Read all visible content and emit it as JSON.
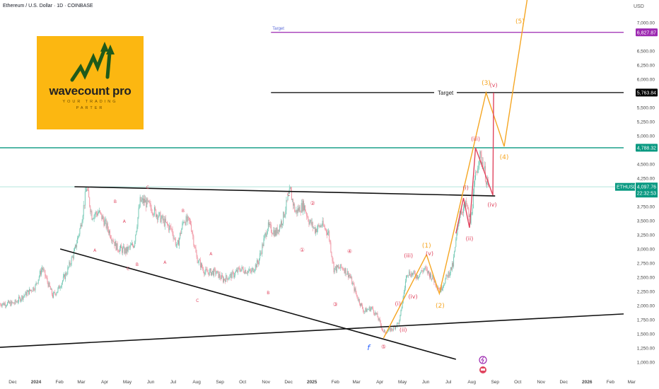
{
  "header": {
    "title": "Ethereum / U.S. Dollar · 1D · COINBASE",
    "currency": "USD"
  },
  "logo": {
    "brand": "wavecount pro",
    "tagline_1": "YOUR TRADING",
    "tagline_2": "PARTER"
  },
  "colors": {
    "up": "#6cc5b0",
    "down": "#ef8d9c",
    "teal": "#089981",
    "purple": "#9c27b0",
    "orange": "#f5a623",
    "wave_red": "#e0455f",
    "blue": "#2962ff"
  },
  "chart_data": {
    "type": "candlestick",
    "title": "Ethereum / U.S. Dollar · 1D · COINBASE",
    "scale": "linear",
    "ylim": [
      1000,
      7000
    ],
    "y_ticks": [
      1000,
      1250,
      1500,
      1750,
      2000,
      2250,
      2500,
      2750,
      3000,
      3250,
      3500,
      3750,
      4250,
      4500,
      5000,
      5250,
      5500,
      6000,
      6250,
      6500,
      7000
    ],
    "y_tick_labels": [
      "1,000.00",
      "1,250.00",
      "1,500.00",
      "1,750.00",
      "2,000.00",
      "2,250.00",
      "2,500.00",
      "2,750.00",
      "3,000.00",
      "3,250.00",
      "3,500.00",
      "3,750.00",
      "4,250.00",
      "4,500.00",
      "5,000.00",
      "5,250.00",
      "5,500.00",
      "6,000.00",
      "6,250.00",
      "6,500.00",
      "7,000.00"
    ],
    "x_unit": "days since 2023-12-01",
    "x_ticks": [
      {
        "day": 0,
        "label": "Dec"
      },
      {
        "day": 31,
        "label": "2024"
      },
      {
        "day": 62,
        "label": "Feb"
      },
      {
        "day": 91,
        "label": "Mar"
      },
      {
        "day": 122,
        "label": "Apr"
      },
      {
        "day": 152,
        "label": "May"
      },
      {
        "day": 183,
        "label": "Jun"
      },
      {
        "day": 213,
        "label": "Jul"
      },
      {
        "day": 244,
        "label": "Aug"
      },
      {
        "day": 275,
        "label": "Sep"
      },
      {
        "day": 305,
        "label": "Oct"
      },
      {
        "day": 336,
        "label": "Nov"
      },
      {
        "day": 366,
        "label": "Dec"
      },
      {
        "day": 397,
        "label": "2025"
      },
      {
        "day": 428,
        "label": "Feb"
      },
      {
        "day": 456,
        "label": "Mar"
      },
      {
        "day": 487,
        "label": "Apr"
      },
      {
        "day": 517,
        "label": "May"
      },
      {
        "day": 548,
        "label": "Jun"
      },
      {
        "day": 578,
        "label": "Jul"
      },
      {
        "day": 609,
        "label": "Aug"
      },
      {
        "day": 640,
        "label": "Sep"
      },
      {
        "day": 670,
        "label": "Oct"
      },
      {
        "day": 701,
        "label": "Nov"
      },
      {
        "day": 731,
        "label": "Dec"
      },
      {
        "day": 762,
        "label": "2026"
      },
      {
        "day": 793,
        "label": "Feb"
      },
      {
        "day": 821,
        "label": "Mar"
      }
    ],
    "price_path": [
      [
        -17,
        2030
      ],
      [
        2,
        2040
      ],
      [
        30,
        2340
      ],
      [
        39,
        2670
      ],
      [
        53,
        2170
      ],
      [
        60,
        2280
      ],
      [
        72,
        2600
      ],
      [
        82,
        2960
      ],
      [
        90,
        3400
      ],
      [
        98,
        4090
      ],
      [
        105,
        3590
      ],
      [
        114,
        3650
      ],
      [
        120,
        3520
      ],
      [
        129,
        3280
      ],
      [
        138,
        3025
      ],
      [
        150,
        2960
      ],
      [
        161,
        3090
      ],
      [
        169,
        3840
      ],
      [
        175,
        3840
      ],
      [
        189,
        3650
      ],
      [
        204,
        3430
      ],
      [
        211,
        3340
      ],
      [
        218,
        3025
      ],
      [
        227,
        3520
      ],
      [
        236,
        3460
      ],
      [
        244,
        2840
      ],
      [
        255,
        2590
      ],
      [
        269,
        2590
      ],
      [
        279,
        2460
      ],
      [
        293,
        2550
      ],
      [
        302,
        2650
      ],
      [
        316,
        2590
      ],
      [
        326,
        2780
      ],
      [
        338,
        3400
      ],
      [
        349,
        3280
      ],
      [
        358,
        3520
      ],
      [
        368,
        4025
      ],
      [
        375,
        3650
      ],
      [
        386,
        3780
      ],
      [
        393,
        3500
      ],
      [
        401,
        3340
      ],
      [
        410,
        3430
      ],
      [
        419,
        3280
      ],
      [
        426,
        2650
      ],
      [
        438,
        2670
      ],
      [
        447,
        2525
      ],
      [
        457,
        2150
      ],
      [
        466,
        1900
      ],
      [
        476,
        1960
      ],
      [
        484,
        1800
      ],
      [
        492,
        1525
      ],
      [
        504,
        1590
      ],
      [
        513,
        1710
      ],
      [
        523,
        2590
      ],
      [
        537,
        2525
      ],
      [
        546,
        2650
      ],
      [
        555,
        2525
      ],
      [
        567,
        2275
      ],
      [
        574,
        2460
      ],
      [
        584,
        2710
      ],
      [
        593,
        3650
      ],
      [
        602,
        3780
      ],
      [
        607,
        3460
      ],
      [
        614,
        4275
      ],
      [
        619,
        4650
      ],
      [
        624,
        4525
      ],
      [
        629,
        4150
      ],
      [
        632,
        4097.76
      ]
    ],
    "horizontal_levels": [
      {
        "name": "target-upper",
        "price": 6827.87,
        "label": "6,827.87",
        "text": "Target",
        "color": "#9c27b0",
        "from_day": 322
      },
      {
        "name": "target-mid",
        "price": 5763.84,
        "label": "5,763.84",
        "text": "Target",
        "color": "#000000",
        "from_day": 322
      },
      {
        "name": "resistance",
        "price": 4788.32,
        "label": "4,788.32",
        "color": "#089981",
        "from_day": -17
      }
    ],
    "last_price": {
      "symbol": "ETHUSD",
      "price": 4097.76,
      "label": "4,097.76",
      "countdown": "22:32:53"
    },
    "trendlines": [
      {
        "name": "upper-trendline",
        "points": [
          [
            82,
            4100
          ],
          [
            640,
            3937
          ]
        ]
      },
      {
        "name": "descending-trendline",
        "points": [
          [
            63,
            3000
          ],
          [
            588,
            1050
          ]
        ]
      },
      {
        "name": "ascending-trendline",
        "points": [
          [
            -17,
            1262
          ],
          [
            825,
            1862
          ]
        ]
      }
    ],
    "projection_orange": [
      [
        492,
        1425
      ],
      [
        549,
        2900
      ],
      [
        566,
        2212
      ],
      [
        628,
        5763
      ],
      [
        652,
        4812
      ],
      [
        683,
        7450
      ]
    ],
    "projection_red": [
      [
        588,
        3275
      ],
      [
        598,
        3900
      ],
      [
        606,
        3375
      ],
      [
        614,
        4788
      ],
      [
        637,
        3950
      ],
      [
        638,
        5763
      ]
    ],
    "wave_labels": [
      {
        "text": "①",
        "day": 384,
        "price": 2988,
        "color": "#e0455f"
      },
      {
        "text": "②",
        "day": 398,
        "price": 3812,
        "color": "#e0455f"
      },
      {
        "text": "③",
        "day": 428,
        "price": 2025,
        "color": "#e0455f"
      },
      {
        "text": "④",
        "day": 447,
        "price": 2962,
        "color": "#e0455f"
      },
      {
        "text": "⑤",
        "day": 492,
        "price": 1275,
        "color": "#e0455f"
      },
      {
        "text": "f",
        "day": 472,
        "price": 1250,
        "color": "#2962ff"
      },
      {
        "text": "(i)",
        "day": 511,
        "price": 2038,
        "color": "#e0455f"
      },
      {
        "text": "(ii)",
        "day": 518,
        "price": 1575,
        "color": "#e0455f"
      },
      {
        "text": "(iii)",
        "day": 525,
        "price": 2888,
        "color": "#e0455f"
      },
      {
        "text": "(iv)",
        "day": 531,
        "price": 2162,
        "color": "#e0455f"
      },
      {
        "text": "(v)",
        "day": 553,
        "price": 2925,
        "color": "#e0455f"
      },
      {
        "text": "(1)",
        "day": 549,
        "price": 3060,
        "color": "#f5a623"
      },
      {
        "text": "(2)",
        "day": 567,
        "price": 2000,
        "color": "#f5a623"
      },
      {
        "text": "(3)",
        "day": 628,
        "price": 5938,
        "color": "#f5a623"
      },
      {
        "text": "(4)",
        "day": 652,
        "price": 4625,
        "color": "#f5a623"
      },
      {
        "text": "(5)",
        "day": 673,
        "price": 7025,
        "color": "#f5a623"
      },
      {
        "text": "(i)",
        "day": 601,
        "price": 4088,
        "color": "#e0455f"
      },
      {
        "text": "(ii)",
        "day": 606,
        "price": 3188,
        "color": "#e0455f"
      },
      {
        "text": "(iii)",
        "day": 614,
        "price": 4950,
        "color": "#e0455f"
      },
      {
        "text": "(iv)",
        "day": 636,
        "price": 3788,
        "color": "#e0455f"
      },
      {
        "text": "(v)",
        "day": 638,
        "price": 5900,
        "color": "#e0455f"
      },
      {
        "text": "C",
        "day": 179,
        "price": 4100,
        "color": "#e0455f"
      },
      {
        "text": "B",
        "day": 136,
        "price": 3850,
        "color": "#e0455f"
      },
      {
        "text": "A",
        "day": 148,
        "price": 3500,
        "color": "#e0455f"
      },
      {
        "text": "A",
        "day": 109,
        "price": 2988,
        "color": "#e0455f"
      },
      {
        "text": "B",
        "day": 165,
        "price": 2738,
        "color": "#e0455f"
      },
      {
        "text": "C",
        "day": 153,
        "price": 2662,
        "color": "#e0455f"
      },
      {
        "text": "B",
        "day": 226,
        "price": 3688,
        "color": "#e0455f"
      },
      {
        "text": "A",
        "day": 202,
        "price": 2775,
        "color": "#e0455f"
      },
      {
        "text": "C",
        "day": 245,
        "price": 2100,
        "color": "#e0455f"
      },
      {
        "text": "A",
        "day": 263,
        "price": 2925,
        "color": "#e0455f"
      },
      {
        "text": "B",
        "day": 339,
        "price": 2238,
        "color": "#e0455f"
      },
      {
        "text": "C",
        "day": 366,
        "price": 3975,
        "color": "#e0455f"
      }
    ]
  }
}
